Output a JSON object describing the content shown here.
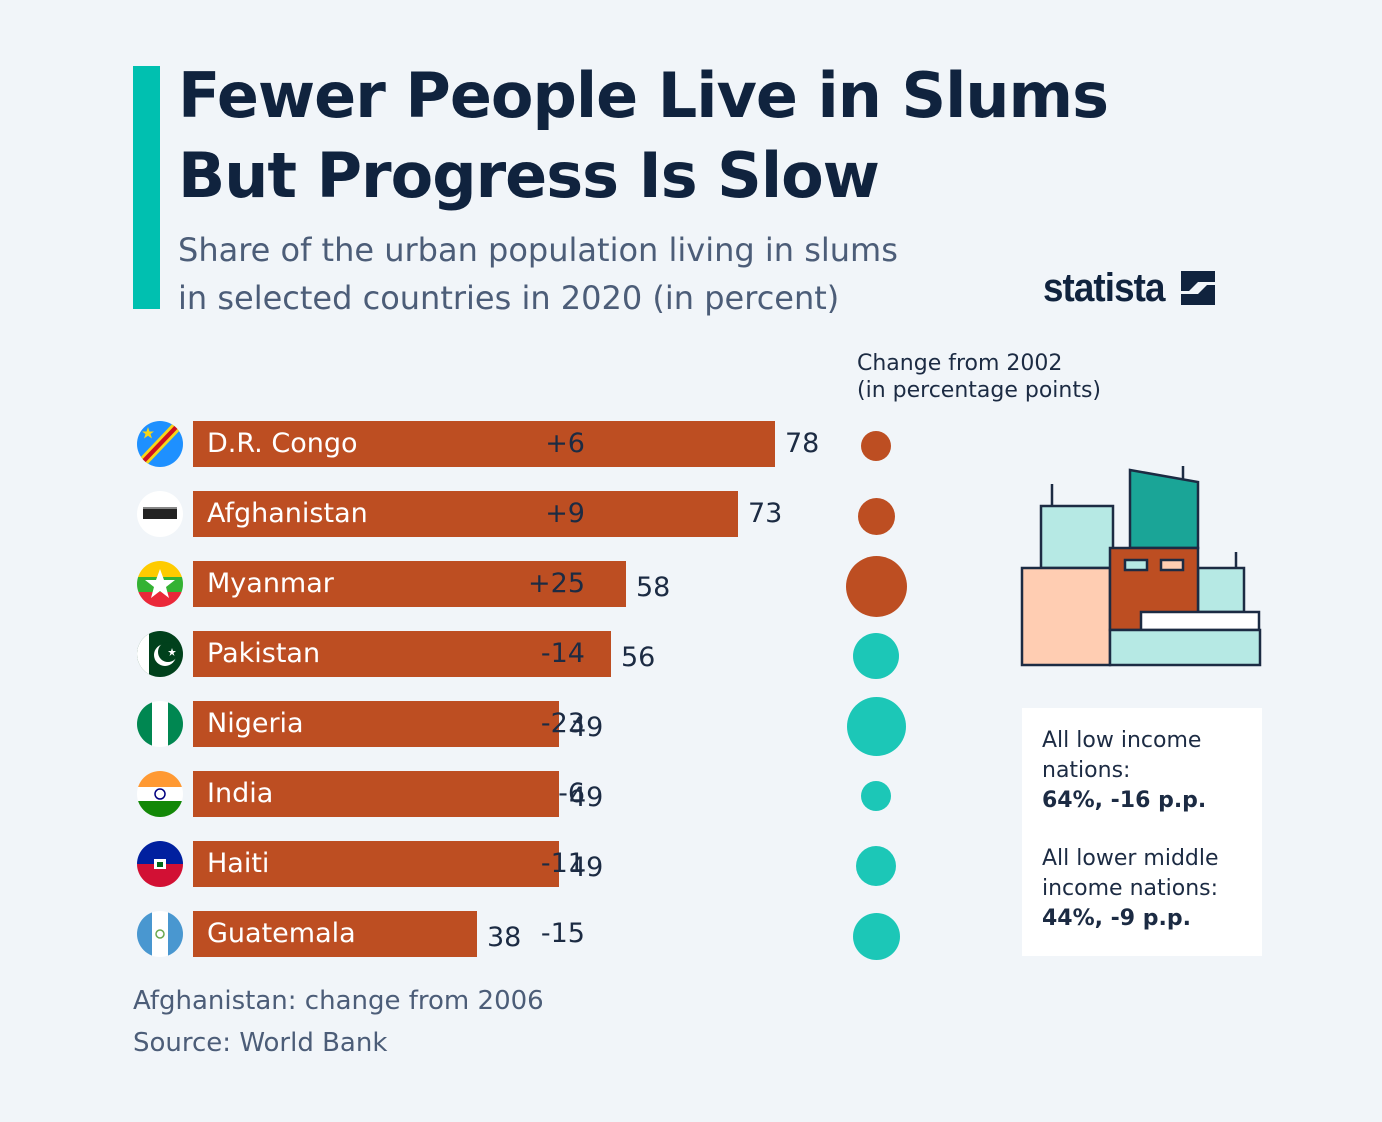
{
  "header": {
    "title_line1": "Fewer People Live in Slums",
    "title_line2": "But Progress Is Slow",
    "subtitle_line1": "Share of the urban population living in slums",
    "subtitle_line2": "in selected countries in 2020 (in percent)",
    "logo": "statista"
  },
  "change_header": {
    "line1": "Change from 2002",
    "line2": "(in percentage points)"
  },
  "chart_data": {
    "type": "bar",
    "orientation": "horizontal",
    "title": "Share of the urban population living in slums in selected countries in 2020 (in percent)",
    "categories": [
      "D.R. Congo",
      "Afghanistan",
      "Myanmar",
      "Pakistan",
      "Nigeria",
      "India",
      "Haiti",
      "Guatemala"
    ],
    "values": [
      78,
      73,
      58,
      56,
      49,
      49,
      49,
      38
    ],
    "value_labels": [
      "78",
      "73",
      "58",
      "56",
      "49",
      "49",
      "49",
      "38"
    ],
    "xlim": [
      0,
      78
    ],
    "change_series": {
      "name": "Change from 2002 (in percentage points)",
      "values": [
        6,
        9,
        25,
        -14,
        -23,
        -6,
        -11,
        -15
      ],
      "labels": [
        "+6",
        "+9",
        "+25",
        "-14",
        "-23",
        "-6",
        "-11",
        "-15"
      ]
    },
    "flags": [
      "cd-flag-icon",
      "af-flag-icon",
      "mm-flag-icon",
      "pk-flag-icon",
      "ng-flag-icon",
      "in-flag-icon",
      "ht-flag-icon",
      "gt-flag-icon"
    ]
  },
  "info_box": {
    "low_label_line1": "All low income",
    "low_label_line2": "nations:",
    "low_value": "64%, -16 p.p.",
    "lower_middle_label_line1": "All lower middle",
    "lower_middle_label_line2": "income nations:",
    "lower_middle_value": "44%, -9 p.p."
  },
  "footer": {
    "note": "Afghanistan: change from 2006",
    "source": "Source: World Bank"
  },
  "colors": {
    "bar": "#bd4e22",
    "increase": "#bd4e22",
    "decrease": "#1cc7b7",
    "accent": "#00c0b0",
    "background": "#f1f5f9",
    "title": "#10233e"
  }
}
